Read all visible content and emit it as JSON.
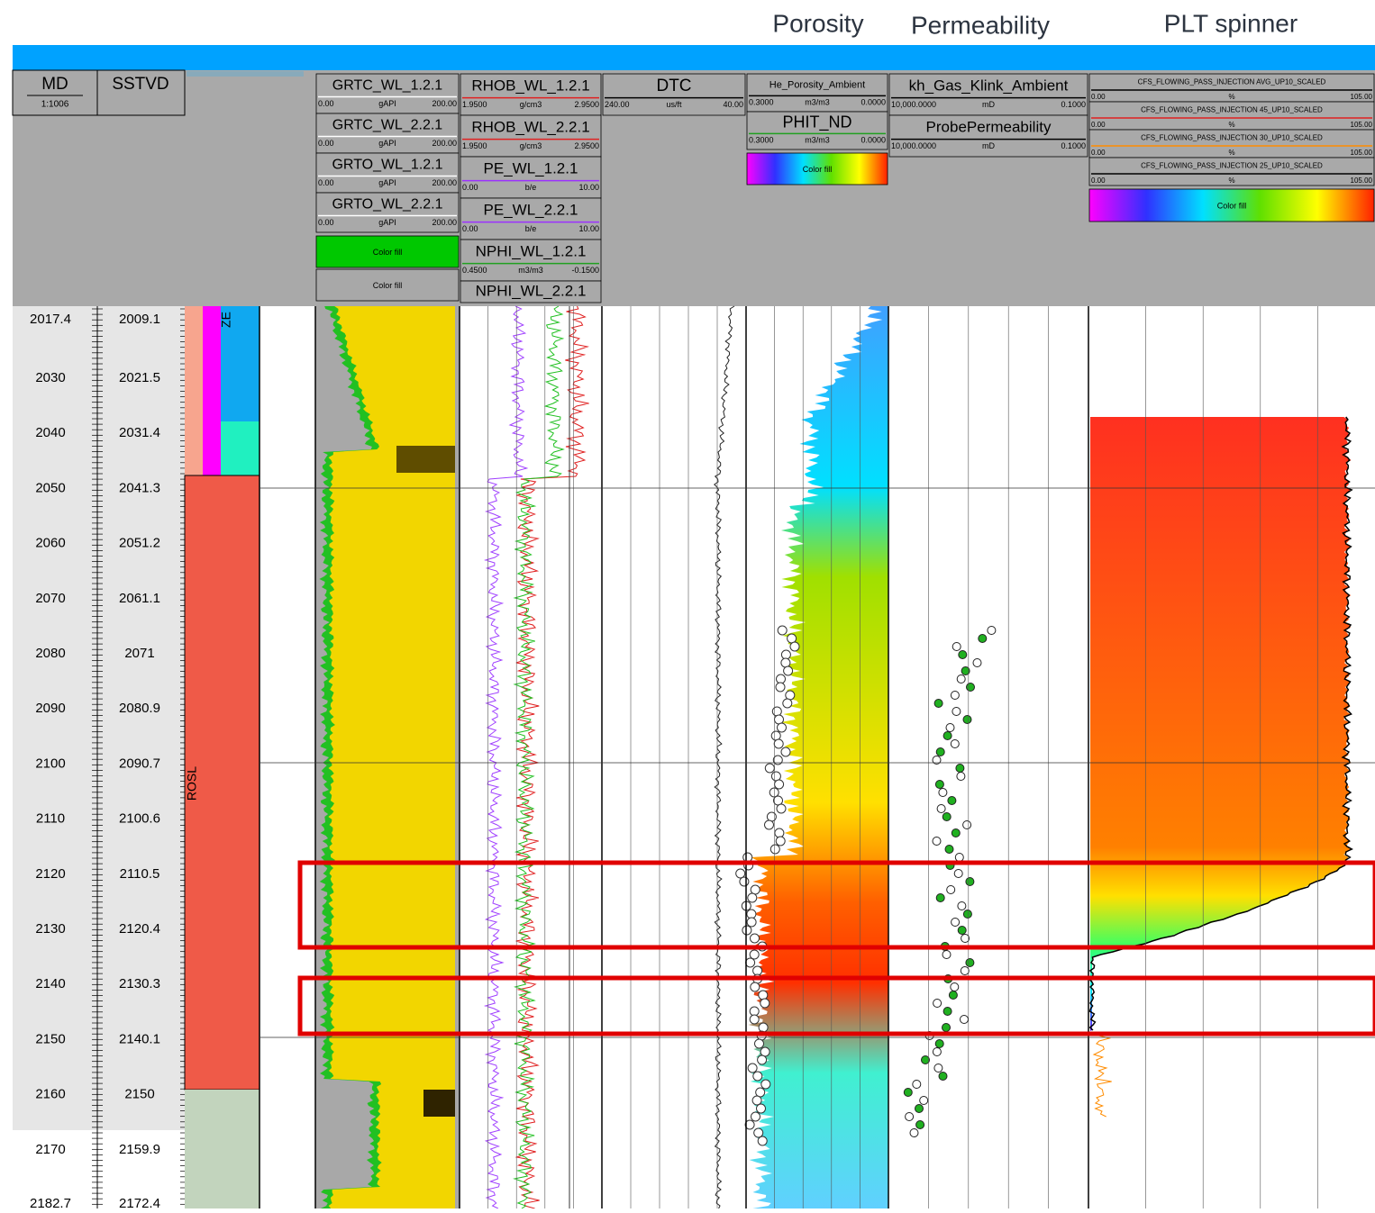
{
  "top_labels": [
    "Porosity",
    "Permeability",
    "PLT spinner"
  ],
  "header": {
    "md": "MD",
    "md_scale": "1:1006",
    "sstvd": "SSTVD"
  },
  "tracks": [
    {
      "curves": [
        {
          "name": "GRTC_WL_1.2.1",
          "min": "0.00",
          "unit": "gAPI",
          "max": "200.00",
          "color": "#ffffff"
        },
        {
          "name": "GRTC_WL_2.2.1",
          "min": "0.00",
          "unit": "gAPI",
          "max": "200.00",
          "color": "#ffffff"
        },
        {
          "name": "GRTO_WL_1.2.1",
          "min": "0.00",
          "unit": "gAPI",
          "max": "200.00",
          "color": "#ffffff"
        },
        {
          "name": "GRTO_WL_2.2.1",
          "min": "0.00",
          "unit": "gAPI",
          "max": "200.00",
          "color": "#ffffff"
        }
      ],
      "fills": [
        "Color fill",
        "Color fill"
      ]
    },
    {
      "curves": [
        {
          "name": "RHOB_WL_1.2.1",
          "min": "1.9500",
          "unit": "g/cm3",
          "max": "2.9500",
          "color": "#e02020"
        },
        {
          "name": "RHOB_WL_2.2.1",
          "min": "1.9500",
          "unit": "g/cm3",
          "max": "2.9500",
          "color": "#e02020"
        },
        {
          "name": "PE_WL_1.2.1",
          "min": "0.00",
          "unit": "b/e",
          "max": "10.00",
          "color": "#9b30ff"
        },
        {
          "name": "PE_WL_2.2.1",
          "min": "0.00",
          "unit": "b/e",
          "max": "10.00",
          "color": "#9b30ff"
        },
        {
          "name": "NPHI_WL_1.2.1",
          "min": "0.4500",
          "unit": "m3/m3",
          "max": "-0.1500",
          "color": "#20a020"
        },
        {
          "name": "NPHI_WL_2.2.1"
        }
      ],
      "fills": []
    },
    {
      "curves": [
        {
          "name": "DTC",
          "min": "240.00",
          "unit": "us/ft",
          "max": "40.00",
          "color": "#000000"
        }
      ],
      "fills": []
    },
    {
      "curves": [
        {
          "name": "He_Porosity_Ambient",
          "min": "0.3000",
          "unit": "m3/m3",
          "max": "0.0000",
          "color": "#000000"
        },
        {
          "name": "PHIT_ND",
          "min": "0.3000",
          "unit": "m3/m3",
          "max": "0.0000",
          "color": "#20a020"
        }
      ],
      "fills": [
        "Color fill"
      ]
    },
    {
      "curves": [
        {
          "name": "kh_Gas_Klink_Ambient",
          "min": "10,000.0000",
          "unit": "mD",
          "max": "0.1000",
          "color": "#000000"
        },
        {
          "name": "ProbePermeability",
          "min": "10,000.0000",
          "unit": "mD",
          "max": "0.1000",
          "color": "#000000"
        }
      ],
      "fills": []
    },
    {
      "curves": [
        {
          "name": "CFS_FLOWING_PASS_INJECTION AVG_UP10_SCALED",
          "min": "0.00",
          "unit": "%",
          "max": "105.00",
          "color": "#000000"
        },
        {
          "name": "CFS_FLOWING_PASS_INJECTION 45_UP10_SCALED",
          "min": "0.00",
          "unit": "%",
          "max": "105.00",
          "color": "#e02020"
        },
        {
          "name": "CFS_FLOWING_PASS_INJECTION 30_UP10_SCALED",
          "min": "0.00",
          "unit": "%",
          "max": "105.00",
          "color": "#ff8c00"
        },
        {
          "name": "CFS_FLOWING_PASS_INJECTION 25_UP10_SCALED",
          "min": "0.00",
          "unit": "%",
          "max": "105.00",
          "color": "#000000"
        }
      ],
      "fills": [
        "Color fill"
      ]
    }
  ],
  "depth": {
    "md": [
      2017.4,
      2030,
      2040,
      2050,
      2060,
      2070,
      2080,
      2090,
      2100,
      2110,
      2120,
      2130,
      2140,
      2150,
      2160,
      2170,
      2182.7
    ],
    "sstvd": [
      2009.1,
      2021.5,
      2031.4,
      2041.3,
      2051.2,
      2061.1,
      2071,
      2080.9,
      2090.7,
      2100.6,
      2110.5,
      2120.4,
      2130.3,
      2140.1,
      2150,
      2159.9,
      2172.4
    ]
  },
  "zones": [
    "ZE",
    "ROSL"
  ]
}
